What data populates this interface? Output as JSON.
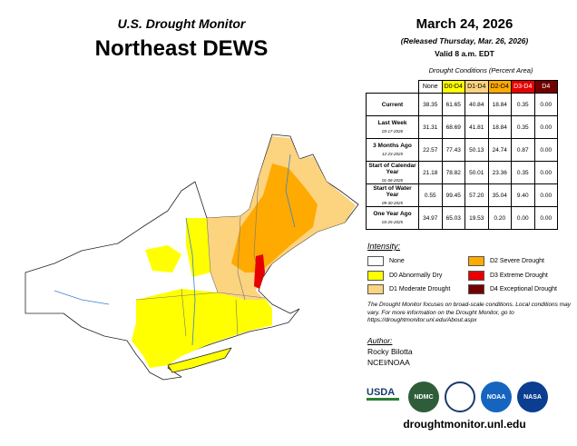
{
  "header": {
    "product": "U.S. Drought Monitor",
    "title": "Northeast DEWS",
    "date": "March 24, 2026",
    "released": "(Released Thursday, Mar. 26, 2026)",
    "valid": "Valid 8 a.m. EDT"
  },
  "table": {
    "caption": "Drought Conditions (Percent Area)",
    "columns": [
      {
        "label": "None",
        "color": "#ffffff",
        "text": "#000000"
      },
      {
        "label": "D0-D4",
        "color": "#ffff00",
        "text": "#000000"
      },
      {
        "label": "D1-D4",
        "color": "#fcd37f",
        "text": "#000000"
      },
      {
        "label": "D2-D4",
        "color": "#ffaa00",
        "text": "#000000"
      },
      {
        "label": "D3-D4",
        "color": "#e60000",
        "text": "#ffffff"
      },
      {
        "label": "D4",
        "color": "#730000",
        "text": "#ffffff"
      }
    ],
    "rows": [
      {
        "label": "Current",
        "values": [
          "38.35",
          "61.65",
          "40.84",
          "18.84",
          "0.35",
          "0.00"
        ]
      },
      {
        "label": "Last Week",
        "date": "03-17-2026",
        "values": [
          "31.31",
          "68.69",
          "41.81",
          "18.84",
          "0.35",
          "0.00"
        ]
      },
      {
        "label": "3 Months Ago",
        "date": "12-23-2025",
        "values": [
          "22.57",
          "77.43",
          "50.13",
          "24.74",
          "0.87",
          "0.00"
        ]
      },
      {
        "label": "Start of Calendar Year",
        "date": "01-06-2026",
        "values": [
          "21.18",
          "78.82",
          "50.01",
          "23.36",
          "0.35",
          "0.00"
        ]
      },
      {
        "label": "Start of Water Year",
        "date": "09-30-2025",
        "values": [
          "0.55",
          "99.45",
          "57.20",
          "35.04",
          "9.40",
          "0.00"
        ]
      },
      {
        "label": "One Year Ago",
        "date": "03-25-2025",
        "values": [
          "34.97",
          "65.03",
          "19.53",
          "0.20",
          "0.00",
          "0.00"
        ]
      }
    ]
  },
  "legend": {
    "title": "Intensity:",
    "items": [
      {
        "label": "None",
        "color": "#ffffff"
      },
      {
        "label": "D0 Abnormally Dry",
        "color": "#ffff00"
      },
      {
        "label": "D1 Moderate Drought",
        "color": "#fcd37f"
      },
      {
        "label": "D2 Severe Drought",
        "color": "#ffaa00"
      },
      {
        "label": "D3 Extreme Drought",
        "color": "#e60000"
      },
      {
        "label": "D4 Exceptional Drought",
        "color": "#730000"
      }
    ]
  },
  "note": "The Drought Monitor focuses on broad-scale conditions. Local conditions may vary. For more information on the Drought Monitor, go to https://droughtmonitor.unl.edu/About.aspx",
  "author": {
    "title": "Author:",
    "name": "Rocky Bilotta",
    "org": "NCEI/NOAA"
  },
  "logos": [
    "USDA",
    "NDMC",
    "NOAA",
    "NASA"
  ],
  "footer": "droughtmonitor.unl.edu"
}
